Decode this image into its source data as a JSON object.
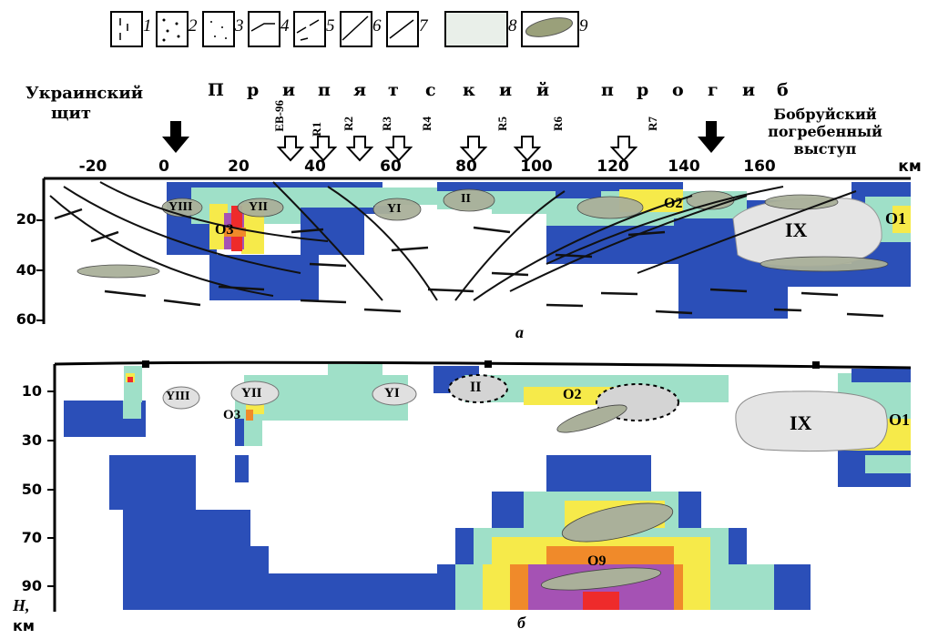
{
  "legend": {
    "items": [
      "1",
      "2",
      "3",
      "4",
      "5",
      "6",
      "7",
      "8",
      "9"
    ]
  },
  "top_panel": {
    "left_label_line1": "Украинский",
    "left_label_line2": "щит",
    "center_label_letters": [
      "П",
      "р",
      "и",
      "п",
      "я",
      "т",
      "с",
      "к",
      "и",
      "й",
      "п",
      "р",
      "о",
      "г",
      "и",
      "б"
    ],
    "right_label_line1": "Бобруйский",
    "right_label_line2": "погребенный",
    "right_label_line3": "выступ",
    "x_ticks": [
      "-20",
      "0",
      "20",
      "40",
      "60",
      "80",
      "100",
      "120",
      "140",
      "160"
    ],
    "x_unit": "км",
    "y_ticks": [
      "20",
      "40",
      "60"
    ],
    "profiles": [
      "EB-96",
      "R1",
      "R2",
      "R3",
      "R4",
      "R5",
      "R6",
      "R7"
    ],
    "bodies": [
      "YIII",
      "YII",
      "YI",
      "II",
      "IX"
    ],
    "anomalies": [
      "O3",
      "O2",
      "O1"
    ],
    "panel_letter": "а"
  },
  "bottom_panel": {
    "y_ticks": [
      "10",
      "30",
      "50",
      "70",
      "90"
    ],
    "y_axis_label_line1": "H,",
    "y_axis_label_line2": "км",
    "bodies": [
      "YIII",
      "YII",
      "YI",
      "II",
      "IX"
    ],
    "anomalies": [
      "O3",
      "O2",
      "O1",
      "O9"
    ],
    "panel_letter": "б"
  },
  "colors": {
    "dark_blue": "#2b4fb8",
    "light_teal": "#9fe0c8",
    "yellow": "#f6ea4a",
    "orange": "#f08a2a",
    "red": "#ee2b2b",
    "purple": "#a552b4",
    "grey_body": "#dcdcdc"
  }
}
